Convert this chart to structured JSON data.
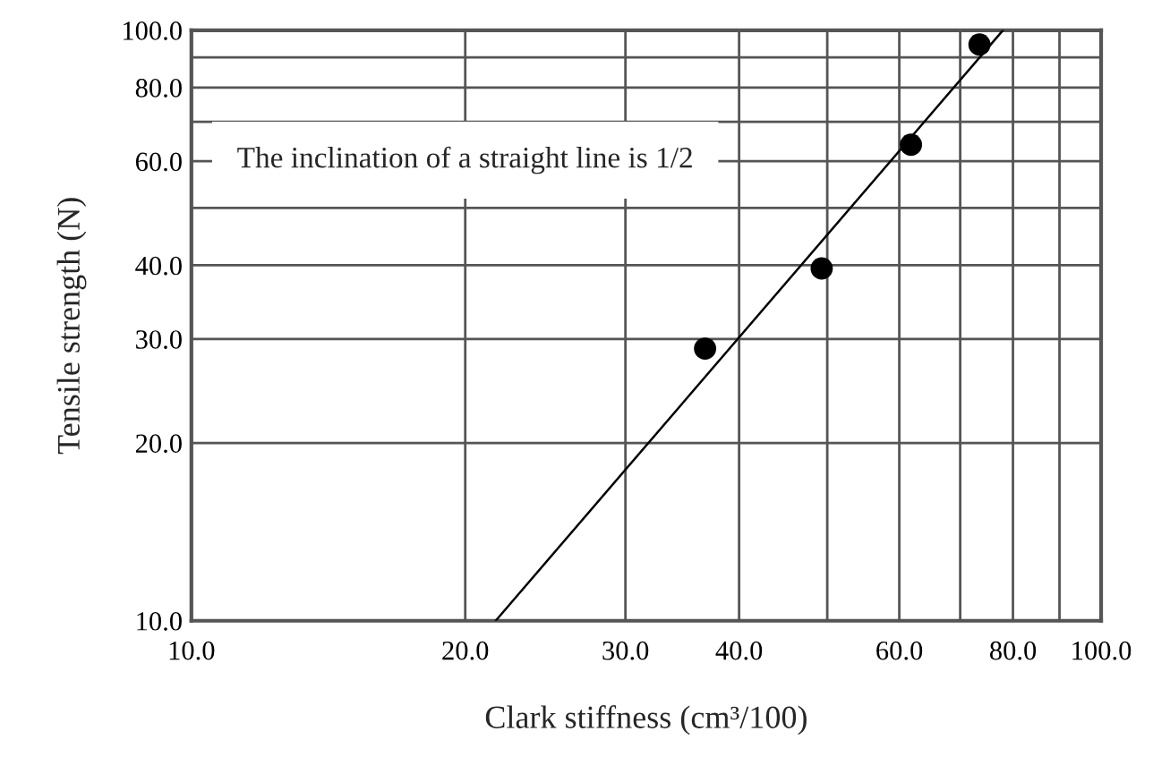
{
  "chart_data": {
    "type": "scatter",
    "xlabel": "Clark stiffness (cm³/100)",
    "ylabel": "Tensile strength (N)",
    "annotations": [
      "The inclination of a straight line is 1/2"
    ],
    "log": "xy",
    "grid": true,
    "xlim": [
      10,
      100
    ],
    "ylim": [
      10,
      100
    ],
    "xticks": [
      {
        "value": 10,
        "label": "10.0"
      },
      {
        "value": 20,
        "label": "20.0"
      },
      {
        "value": 30,
        "label": "30.0"
      },
      {
        "value": 40,
        "label": "40.0"
      },
      {
        "value": 50,
        "label": null
      },
      {
        "value": 60,
        "label": "60.0"
      },
      {
        "value": 70,
        "label": null
      },
      {
        "value": 80,
        "label": "80.0"
      },
      {
        "value": 90,
        "label": null
      },
      {
        "value": 100,
        "label": "100.0"
      }
    ],
    "yticks": [
      {
        "value": 10,
        "label": "10.0"
      },
      {
        "value": 20,
        "label": "20.0"
      },
      {
        "value": 30,
        "label": "30.0"
      },
      {
        "value": 40,
        "label": "40.0"
      },
      {
        "value": 50,
        "label": null
      },
      {
        "value": 60,
        "label": "60.0"
      },
      {
        "value": 70,
        "label": null
      },
      {
        "value": 80,
        "label": "80.0"
      },
      {
        "value": 90,
        "label": null
      },
      {
        "value": 100,
        "label": "100.0"
      }
    ],
    "series": [
      {
        "marker": "circle",
        "color": "#000000",
        "x": [
          36.7,
          49.3,
          61.8,
          73.5
        ],
        "values": [
          28.9,
          39.5,
          64.0,
          94.6
        ]
      },
      {
        "type": "line",
        "color": "#000000",
        "marker": "none",
        "x": [
          21.6,
          78.0
        ],
        "values": [
          10,
          100
        ]
      }
    ]
  }
}
